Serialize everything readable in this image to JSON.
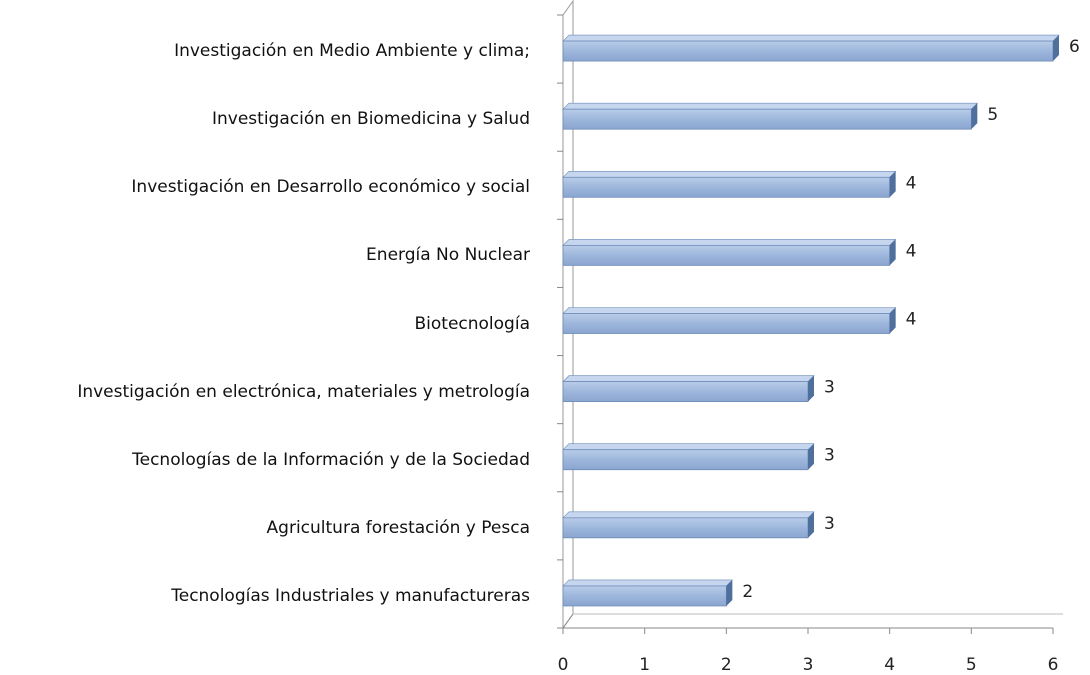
{
  "chart_data": {
    "type": "bar",
    "orientation": "horizontal",
    "categories": [
      "Investigación en Medio Ambiente  y clima;",
      "Investigación en Biomedicina y Salud",
      "Investigación en Desarrollo económico y social",
      "Energía No Nuclear",
      "Biotecnología",
      "Investigación en electrónica, materiales y metrología",
      "Tecnologías de la Información y de la Sociedad",
      "Agricultura  forestación y Pesca",
      "Tecnologías Industriales  y manufactureras"
    ],
    "values": [
      6,
      5,
      4,
      4,
      4,
      3,
      3,
      3,
      2
    ],
    "color": "#95b3d7",
    "xlim": [
      0,
      6
    ],
    "xticks": [
      0,
      1,
      2,
      3,
      4,
      5,
      6
    ],
    "grid": false
  }
}
